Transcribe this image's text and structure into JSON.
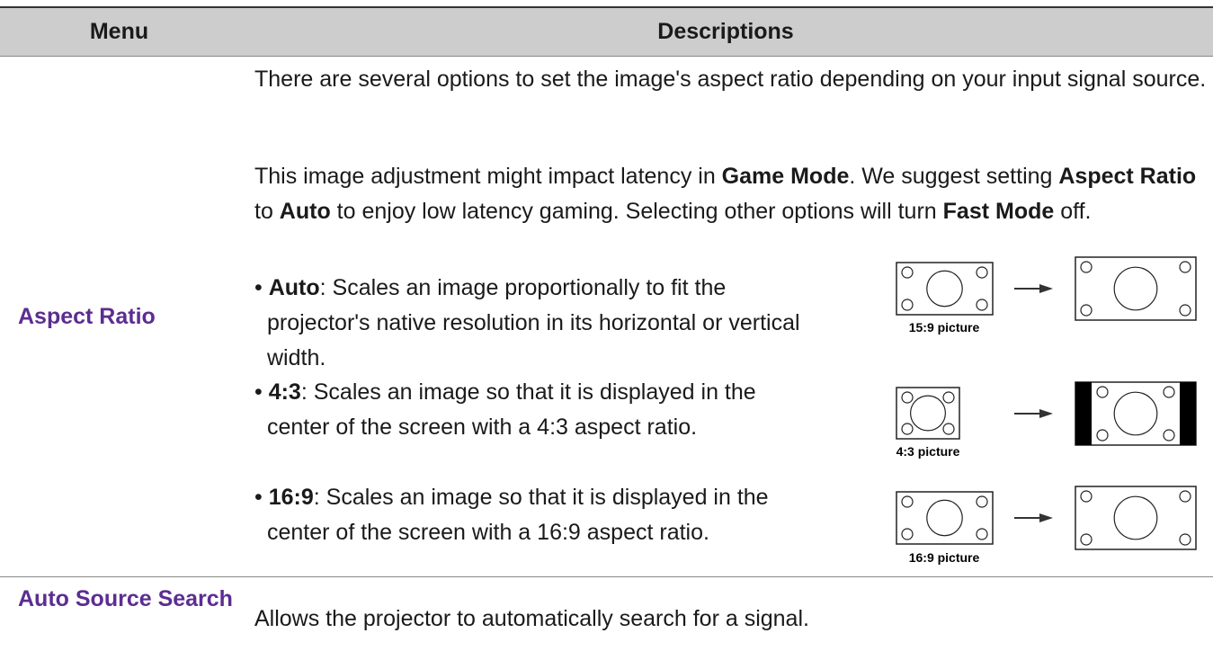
{
  "table": {
    "header": [
      "Menu",
      "Descriptions"
    ],
    "rows": [
      {
        "menu": "Aspect Ratio",
        "paragraphs": [
          [
            {
              "text": "There are several options to set the image's aspect ratio depending on your input signal source.",
              "bold": false
            }
          ],
          [
            {
              "text": "This image adjustment might impact latency in ",
              "bold": false
            },
            {
              "text": "Game Mode",
              "bold": true
            },
            {
              "text": ". We suggest setting ",
              "bold": false
            },
            {
              "text": "Aspect Ratio",
              "bold": true
            },
            {
              "text": " to ",
              "bold": false
            },
            {
              "text": "Auto",
              "bold": true
            },
            {
              "text": " to enjoy low latency gaming. Selecting other options will turn ",
              "bold": false
            },
            {
              "text": "Fast Mode",
              "bold": true
            },
            {
              "text": " off.",
              "bold": false
            }
          ]
        ],
        "options": [
          {
            "term": "Auto",
            "text": ": Scales an image proportionally to fit the projector's native resolution in its horizontal or vertical width.",
            "caption": "15:9 picture"
          },
          {
            "term": "4:3",
            "text": ": Scales an image so that it is displayed in the center of the screen with a 4:3 aspect ratio.",
            "caption": "4:3 picture"
          },
          {
            "term": "16:9",
            "text": ": Scales an image so that it is displayed in the center of the screen with a 16:9 aspect ratio.",
            "caption": "16:9 picture"
          }
        ]
      },
      {
        "menu": "Auto Source Search",
        "description": "Allows the projector to automatically search for a signal."
      }
    ]
  }
}
